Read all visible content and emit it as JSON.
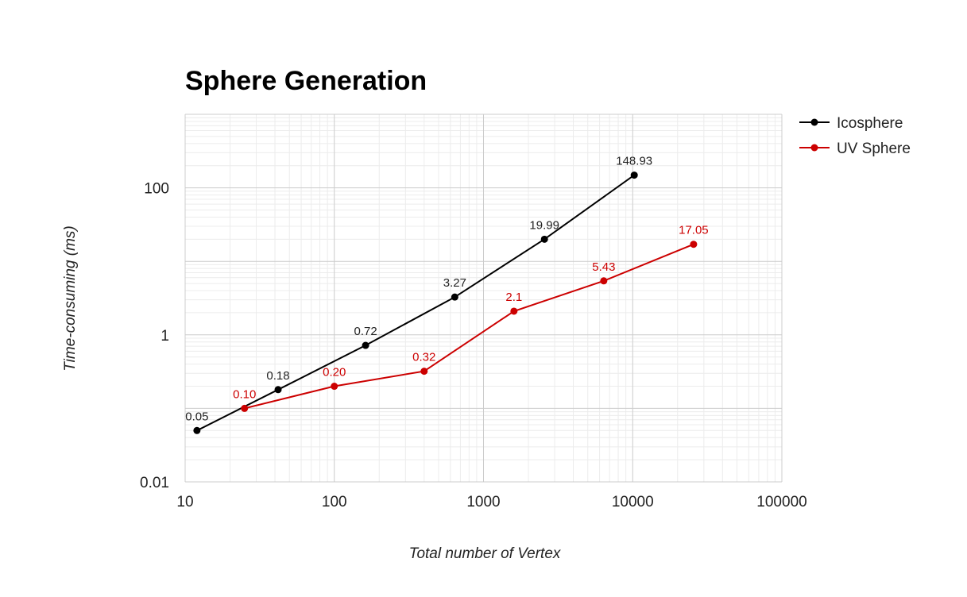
{
  "chart_data": {
    "type": "line",
    "title": "Sphere Generation",
    "xlabel": "Total number of Vertex",
    "ylabel": "Time-consuming (ms)",
    "x_scale": "log",
    "y_scale": "log",
    "xlim": [
      10,
      100000
    ],
    "ylim": [
      0.01,
      1000
    ],
    "x_ticks": [
      10,
      100,
      1000,
      10000,
      100000
    ],
    "x_tick_labels": [
      "10",
      "100",
      "1000",
      "10000",
      "100000"
    ],
    "y_ticks": [
      0.01,
      1,
      100
    ],
    "y_tick_labels": [
      "0.01",
      "1",
      "100"
    ],
    "grid": true,
    "legend_position": "top-right",
    "series": [
      {
        "name": "Icosphere",
        "color": "#000000",
        "x": [
          12,
          42,
          162,
          642,
          2562,
          10242
        ],
        "y": [
          0.05,
          0.18,
          0.72,
          3.27,
          19.99,
          148.93
        ],
        "labels": [
          "0.05",
          "0.18",
          "0.72",
          "3.27",
          "19.99",
          "148.93"
        ]
      },
      {
        "name": "UV Sphere",
        "color": "#cc0000",
        "x": [
          25,
          100,
          400,
          1600,
          6400,
          25600
        ],
        "y": [
          0.1,
          0.2,
          0.32,
          2.1,
          5.43,
          17.05
        ],
        "labels": [
          "0.10",
          "0.20",
          "0.32",
          "2.1",
          "5.43",
          "17.05"
        ]
      }
    ]
  }
}
